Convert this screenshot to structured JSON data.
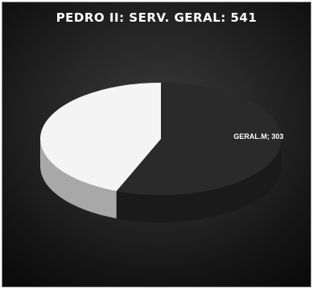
{
  "chart_data": {
    "type": "pie",
    "title": "PEDRO II: SERV. GERAL: 541",
    "total": 541,
    "slices": [
      {
        "label": "GERAL.M; 303",
        "category": "GERAL.M",
        "value": 303,
        "color": "#2a2a2a",
        "side_color": "#1a1a1a",
        "show_label": true
      },
      {
        "label": "",
        "category": "",
        "value": 238,
        "color": "#f4f4f4",
        "side_color": "#a8a8a8",
        "show_label": false
      }
    ],
    "legend": "none",
    "style": "3d"
  }
}
